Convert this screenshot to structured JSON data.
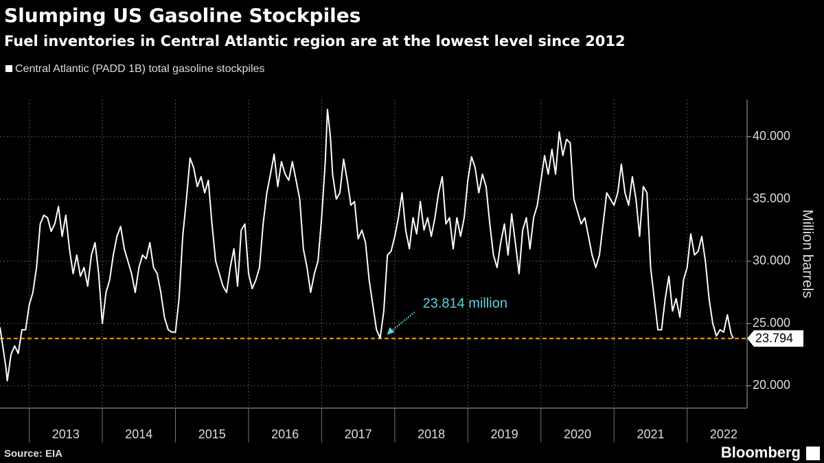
{
  "chart_data": {
    "type": "line",
    "title": "Slumping US Gasoline Stockpiles",
    "subtitle": "Fuel inventories in Central Atlantic region are at the lowest level since 2012",
    "ylabel": "Million barrels",
    "source": "Source: EIA",
    "brand": "Bloomberg",
    "x": [
      2012.6,
      2012.63,
      2012.68,
      2012.7,
      2012.75,
      2012.8,
      2012.85,
      2012.9,
      2012.95,
      2013.0,
      2013.05,
      2013.1,
      2013.15,
      2013.2,
      2013.25,
      2013.3,
      2013.35,
      2013.4,
      2013.45,
      2013.5,
      2013.55,
      2013.6,
      2013.65,
      2013.7,
      2013.75,
      2013.8,
      2013.85,
      2013.9,
      2013.95,
      2014.0,
      2014.05,
      2014.1,
      2014.15,
      2014.2,
      2014.25,
      2014.3,
      2014.35,
      2014.4,
      2014.45,
      2014.5,
      2014.55,
      2014.6,
      2014.65,
      2014.7,
      2014.75,
      2014.8,
      2014.85,
      2014.9,
      2014.95,
      2015.0,
      2015.05,
      2015.1,
      2015.15,
      2015.2,
      2015.25,
      2015.3,
      2015.35,
      2015.4,
      2015.45,
      2015.5,
      2015.55,
      2015.6,
      2015.65,
      2015.7,
      2015.75,
      2015.8,
      2015.85,
      2015.9,
      2015.95,
      2016.0,
      2016.05,
      2016.1,
      2016.15,
      2016.2,
      2016.25,
      2016.3,
      2016.35,
      2016.4,
      2016.45,
      2016.5,
      2016.55,
      2016.6,
      2016.65,
      2016.7,
      2016.75,
      2016.8,
      2016.85,
      2016.9,
      2016.95,
      2017.0,
      2017.05,
      2017.08,
      2017.12,
      2017.15,
      2017.2,
      2017.25,
      2017.3,
      2017.35,
      2017.4,
      2017.45,
      2017.5,
      2017.55,
      2017.6,
      2017.65,
      2017.7,
      2017.75,
      2017.8,
      2017.85,
      2017.9,
      2017.95,
      2018.0,
      2018.05,
      2018.1,
      2018.15,
      2018.2,
      2018.25,
      2018.3,
      2018.35,
      2018.4,
      2018.45,
      2018.5,
      2018.55,
      2018.6,
      2018.65,
      2018.7,
      2018.75,
      2018.8,
      2018.85,
      2018.9,
      2018.95,
      2019.0,
      2019.05,
      2019.1,
      2019.15,
      2019.2,
      2019.25,
      2019.3,
      2019.35,
      2019.4,
      2019.45,
      2019.5,
      2019.55,
      2019.6,
      2019.65,
      2019.7,
      2019.75,
      2019.8,
      2019.85,
      2019.9,
      2019.95,
      2020.0,
      2020.05,
      2020.1,
      2020.15,
      2020.2,
      2020.25,
      2020.3,
      2020.35,
      2020.4,
      2020.45,
      2020.5,
      2020.55,
      2020.6,
      2020.65,
      2020.7,
      2020.75,
      2020.8,
      2020.85,
      2020.9,
      2020.95,
      2021.0,
      2021.05,
      2021.1,
      2021.15,
      2021.2,
      2021.25,
      2021.3,
      2021.35,
      2021.4,
      2021.45,
      2021.5,
      2021.55,
      2021.6,
      2021.65,
      2021.7,
      2021.75,
      2021.8,
      2021.85,
      2021.9,
      2021.95,
      2022.0,
      2022.05,
      2022.1,
      2022.15,
      2022.2,
      2022.25,
      2022.3,
      2022.35,
      2022.4,
      2022.45,
      2022.5,
      2022.55,
      2022.6,
      2022.63
    ],
    "series": [
      {
        "name": "Central Atlantic (PADD 1B) total gasoline stockpiles",
        "color": "#ffffff",
        "values": [
          24.7,
          23.5,
          21.5,
          20.4,
          22.5,
          23.2,
          22.6,
          24.5,
          24.5,
          26.5,
          27.5,
          29.5,
          33,
          33.7,
          33.5,
          32.4,
          33,
          34.4,
          32,
          33.7,
          31,
          29,
          30.5,
          28.8,
          29.5,
          28,
          30.5,
          31.5,
          29,
          25,
          27.5,
          28.5,
          30.5,
          32,
          32.8,
          31,
          30,
          29,
          27.5,
          29.5,
          30.5,
          30.2,
          31.5,
          29.5,
          29,
          27.5,
          25.5,
          24.5,
          24.3,
          24.3,
          27,
          32,
          35,
          38.3,
          37.5,
          36,
          36.8,
          35.5,
          36.5,
          33,
          30,
          29,
          28,
          27.5,
          29.5,
          31,
          28,
          32.5,
          33,
          29,
          27.8,
          28.5,
          29.5,
          33,
          35.5,
          37,
          38.6,
          36,
          38,
          37,
          36.5,
          38,
          36.5,
          35,
          31,
          29.5,
          27.5,
          29,
          30,
          33.5,
          38,
          42.2,
          40,
          37,
          35,
          35.5,
          38.2,
          36.5,
          34.5,
          34.8,
          31.8,
          32.5,
          31.5,
          28.5,
          26.5,
          24.5,
          23.814,
          26,
          30.5,
          30.8,
          32,
          33.5,
          35.5,
          32.5,
          31,
          33.5,
          32.2,
          34.8,
          32.5,
          33.5,
          32,
          33.5,
          35.5,
          36.8,
          33,
          33.5,
          31,
          33.5,
          32,
          33.5,
          36.5,
          38.4,
          37.5,
          35.5,
          37,
          36,
          33,
          30.5,
          29.5,
          31.5,
          33,
          30.5,
          33.8,
          31.5,
          29,
          32.5,
          33.5,
          31,
          33.5,
          34.5,
          36.5,
          38.5,
          37,
          39,
          37,
          40.4,
          38.5,
          39.8,
          39.5,
          35,
          34,
          33,
          33.5,
          32,
          30.5,
          29.5,
          30.5,
          33,
          35.5,
          35,
          34.5,
          35.5,
          37.8,
          35.5,
          34.5,
          36.8,
          35,
          32,
          36,
          35.5,
          29.5,
          27,
          24.5,
          24.5,
          27,
          28.8,
          26,
          27,
          25.5,
          28.5,
          29.5,
          32.2,
          30.5,
          30.8,
          32,
          30,
          27,
          25,
          24,
          24.5,
          24.3,
          25.7,
          24.2,
          23.794
        ]
      }
    ],
    "last_value": 23.794,
    "annotation": {
      "text": "23.814 million",
      "x": 2017.8,
      "value": 23.814
    },
    "xlim": [
      2012.6,
      2022.82
    ],
    "ylim": [
      18.2,
      43
    ],
    "xticks": [
      {
        "value": 2013.5,
        "label": "2013"
      },
      {
        "value": 2014.5,
        "label": "2014"
      },
      {
        "value": 2015.5,
        "label": "2015"
      },
      {
        "value": 2016.5,
        "label": "2016"
      },
      {
        "value": 2017.5,
        "label": "2017"
      },
      {
        "value": 2018.5,
        "label": "2018"
      },
      {
        "value": 2019.5,
        "label": "2019"
      },
      {
        "value": 2020.5,
        "label": "2020"
      },
      {
        "value": 2021.5,
        "label": "2021"
      },
      {
        "value": 2022.5,
        "label": "2022"
      }
    ],
    "xgrid": [
      2013,
      2014,
      2015,
      2016,
      2017,
      2018,
      2019,
      2020,
      2021,
      2022
    ],
    "yticks": [
      {
        "value": 20,
        "label": "20.000"
      },
      {
        "value": 25,
        "label": "25.000"
      },
      {
        "value": 30,
        "label": "30.000"
      },
      {
        "value": 35,
        "label": "35.000"
      },
      {
        "value": 40,
        "label": "40.000"
      }
    ],
    "grid": true,
    "reference_color": "#f5a623",
    "annotation_color": "#5ed4e0"
  }
}
